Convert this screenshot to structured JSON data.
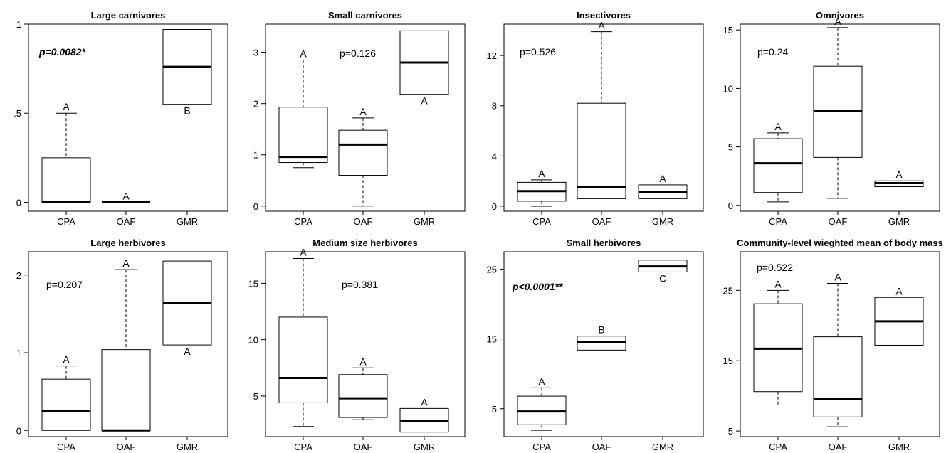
{
  "chart_data": [
    {
      "type": "boxplot",
      "title": "Large carnivores",
      "categories": [
        "CPA",
        "OAF",
        "GMR"
      ],
      "ylim": [
        -0.05,
        1.0
      ],
      "yticks": [
        {
          "value": 0,
          "label": "0"
        },
        {
          "value": 0.5,
          "label": ".5"
        },
        {
          "value": 1,
          "label": "1"
        }
      ],
      "p_value": "p=0.0082*",
      "significant": true,
      "boxes": [
        {
          "whisker_low": 0,
          "q1": 0,
          "median": 0,
          "q3": 0.25,
          "whisker_high": 0.5,
          "letter": "A"
        },
        {
          "whisker_low": 0,
          "q1": 0,
          "median": 0,
          "q3": 0,
          "whisker_high": 0,
          "letter": "A"
        },
        {
          "whisker_low": 0.55,
          "q1": 0.55,
          "median": 0.76,
          "q3": 0.97,
          "whisker_high": 0.97,
          "letter": "B",
          "letter_below": true
        }
      ]
    },
    {
      "type": "boxplot",
      "title": "Small carnivores",
      "categories": [
        "CPA",
        "OAF",
        "GMR"
      ],
      "ylim": [
        -0.1,
        3.55
      ],
      "yticks": [
        {
          "value": 0,
          "label": "0"
        },
        {
          "value": 1,
          "label": "1"
        },
        {
          "value": 2,
          "label": "2"
        },
        {
          "value": 3,
          "label": "3"
        }
      ],
      "p_value": "p=0.126",
      "significant": false,
      "boxes": [
        {
          "whisker_low": 0.75,
          "q1": 0.85,
          "median": 0.96,
          "q3": 1.93,
          "whisker_high": 2.85,
          "letter": "A"
        },
        {
          "whisker_low": 0,
          "q1": 0.6,
          "median": 1.2,
          "q3": 1.48,
          "whisker_high": 1.72,
          "letter": "A"
        },
        {
          "whisker_low": 2.18,
          "q1": 2.18,
          "median": 2.8,
          "q3": 3.42,
          "whisker_high": 3.42,
          "letter": "A",
          "letter_below": true
        }
      ]
    },
    {
      "type": "boxplot",
      "title": "Insectivores",
      "categories": [
        "CPA",
        "OAF",
        "GMR"
      ],
      "ylim": [
        -0.4,
        14.5
      ],
      "yticks": [
        {
          "value": 0,
          "label": "0"
        },
        {
          "value": 4,
          "label": "4"
        },
        {
          "value": 8,
          "label": "8"
        },
        {
          "value": 12,
          "label": "12"
        }
      ],
      "p_value": "p=0.526",
      "significant": false,
      "boxes": [
        {
          "whisker_low": 0,
          "q1": 0.4,
          "median": 1.2,
          "q3": 1.9,
          "whisker_high": 2.1,
          "letter": "A"
        },
        {
          "whisker_low": 0.6,
          "q1": 0.6,
          "median": 1.5,
          "q3": 8.2,
          "whisker_high": 13.9,
          "letter": "A"
        },
        {
          "whisker_low": 0.6,
          "q1": 0.6,
          "median": 1.1,
          "q3": 1.7,
          "whisker_high": 1.7,
          "letter": "A"
        }
      ]
    },
    {
      "type": "boxplot",
      "title": "Omnivores",
      "categories": [
        "CPA",
        "OAF",
        "GMR"
      ],
      "ylim": [
        -0.5,
        15.5
      ],
      "yticks": [
        {
          "value": 0,
          "label": "0"
        },
        {
          "value": 5,
          "label": "5"
        },
        {
          "value": 10,
          "label": "10"
        },
        {
          "value": 15,
          "label": "15"
        }
      ],
      "p_value": "p=0.24",
      "significant": false,
      "boxes": [
        {
          "whisker_low": 0.3,
          "q1": 1.1,
          "median": 3.6,
          "q3": 5.7,
          "whisker_high": 6.2,
          "letter": "A"
        },
        {
          "whisker_low": 0.6,
          "q1": 4.1,
          "median": 8.1,
          "q3": 11.9,
          "whisker_high": 15.2,
          "letter": "A"
        },
        {
          "whisker_low": 1.6,
          "q1": 1.6,
          "median": 1.9,
          "q3": 2.1,
          "whisker_high": 2.1,
          "letter": "A"
        }
      ]
    },
    {
      "type": "boxplot",
      "title": "Large herbivores",
      "categories": [
        "CPA",
        "OAF",
        "GMR"
      ],
      "ylim": [
        -0.08,
        2.3
      ],
      "yticks": [
        {
          "value": 0,
          "label": "0"
        },
        {
          "value": 1,
          "label": "1"
        },
        {
          "value": 2,
          "label": "2"
        }
      ],
      "p_value": "p=0.207",
      "significant": false,
      "boxes": [
        {
          "whisker_low": 0,
          "q1": 0,
          "median": 0.25,
          "q3": 0.66,
          "whisker_high": 0.83,
          "letter": "A"
        },
        {
          "whisker_low": 0,
          "q1": 0,
          "median": 0,
          "q3": 1.04,
          "whisker_high": 2.07,
          "letter": "A"
        },
        {
          "whisker_low": 1.1,
          "q1": 1.1,
          "median": 1.64,
          "q3": 2.18,
          "whisker_high": 2.18,
          "letter": "A",
          "letter_below": true
        }
      ]
    },
    {
      "type": "boxplot",
      "title": "Medium size herbivores",
      "categories": [
        "CPA",
        "OAF",
        "GMR"
      ],
      "ylim": [
        1.4,
        17.8
      ],
      "yticks": [
        {
          "value": 5,
          "label": "5"
        },
        {
          "value": 10,
          "label": "10"
        },
        {
          "value": 15,
          "label": "15"
        }
      ],
      "p_value": "p=0.381",
      "significant": false,
      "boxes": [
        {
          "whisker_low": 2.3,
          "q1": 4.4,
          "median": 6.6,
          "q3": 12.0,
          "whisker_high": 17.2,
          "letter": "A"
        },
        {
          "whisker_low": 2.9,
          "q1": 3.1,
          "median": 4.8,
          "q3": 6.9,
          "whisker_high": 7.5,
          "letter": "A"
        },
        {
          "whisker_low": 1.8,
          "q1": 1.8,
          "median": 2.8,
          "q3": 3.9,
          "whisker_high": 3.9,
          "letter": "A"
        }
      ]
    },
    {
      "type": "boxplot",
      "title": "Small herbivores",
      "categories": [
        "CPA",
        "OAF",
        "GMR"
      ],
      "ylim": [
        1.0,
        27.5
      ],
      "yticks": [
        {
          "value": 5,
          "label": "5"
        },
        {
          "value": 15,
          "label": "15"
        },
        {
          "value": 25,
          "label": "25"
        }
      ],
      "p_value": "p<0.0001**",
      "significant": true,
      "boxes": [
        {
          "whisker_low": 1.9,
          "q1": 2.7,
          "median": 4.6,
          "q3": 6.8,
          "whisker_high": 8.0,
          "letter": "A"
        },
        {
          "whisker_low": 13.4,
          "q1": 13.4,
          "median": 14.5,
          "q3": 15.4,
          "whisker_high": 15.4,
          "letter": "B"
        },
        {
          "whisker_low": 24.6,
          "q1": 24.6,
          "median": 25.4,
          "q3": 26.3,
          "whisker_high": 26.3,
          "letter": "C",
          "letter_below": true
        }
      ]
    },
    {
      "type": "boxplot",
      "title": "Community-level wieghted mean of body mass",
      "categories": [
        "CPA",
        "OAF",
        "GMR"
      ],
      "ylim": [
        4.2,
        30.5
      ],
      "yticks": [
        {
          "value": 5,
          "label": "5"
        },
        {
          "value": 15,
          "label": "15"
        },
        {
          "value": 25,
          "label": "25"
        }
      ],
      "p_value": "p=0.522",
      "significant": false,
      "boxes": [
        {
          "whisker_low": 8.7,
          "q1": 10.6,
          "median": 16.7,
          "q3": 23.1,
          "whisker_high": 25.0,
          "letter": "A"
        },
        {
          "whisker_low": 5.6,
          "q1": 7.0,
          "median": 9.6,
          "q3": 18.4,
          "whisker_high": 26.0,
          "letter": "A"
        },
        {
          "whisker_low": 17.2,
          "q1": 17.2,
          "median": 20.6,
          "q3": 24.0,
          "whisker_high": 24.0,
          "letter": "A"
        }
      ]
    }
  ]
}
